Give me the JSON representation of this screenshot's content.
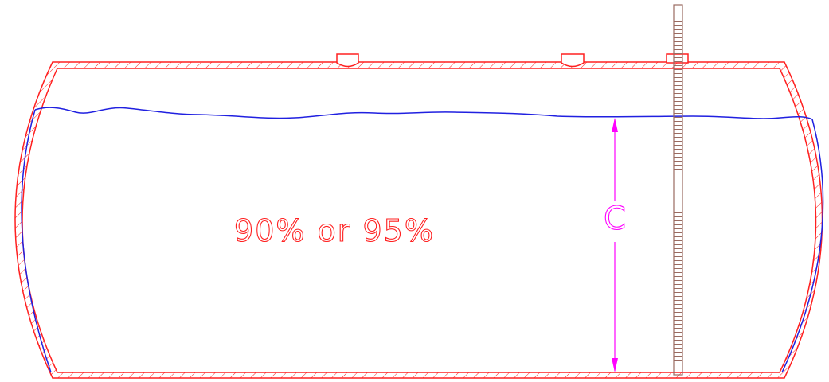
{
  "labels": {
    "fill_percentage": "90% or 95%",
    "dimension_letter": "C"
  },
  "colors": {
    "background": "#ffffff",
    "tank_outline": "#ff2020",
    "liquid_level": "#2020e0",
    "dimension": "#ff00ff",
    "gauge_stick": "#9a6a60"
  },
  "icons": {
    "tank": "horizontal-tank-cross-section",
    "gauge": "dip-stick-gauge",
    "fittings": "top-fitting-nozzle"
  }
}
